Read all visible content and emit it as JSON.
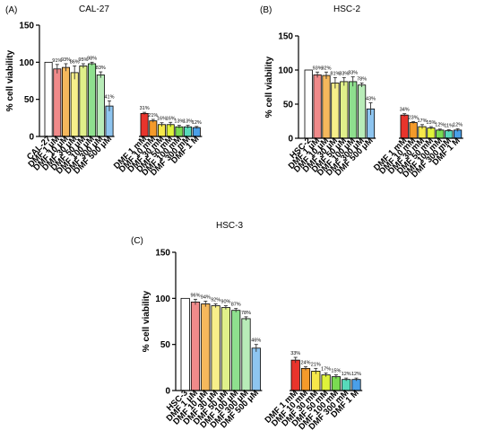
{
  "chart_data": [
    {
      "type": "bar",
      "panel_label": "(A)",
      "title": "CAL-27",
      "ylabel": "% cell viability",
      "ylim": [
        0,
        150
      ],
      "yticks": [
        0,
        50,
        100,
        150
      ],
      "categories": [
        "CAL-27",
        "DMF 1 μM",
        "DMF 10 μM",
        "DMF 30 μM",
        "DMF 50 μM",
        "DMF 100 μM",
        "DMF 300 μM",
        "DMF 500 μM",
        "DMF 1 mM",
        "DMF 10 mM",
        "DMF 30 mM",
        "DMF 50 mM",
        "DMF 100 mM",
        "DMF 300 mM",
        "DMF 1 M"
      ],
      "values": [
        100,
        91,
        93,
        86,
        95,
        98,
        83,
        41,
        31,
        21,
        16,
        16,
        13,
        13,
        12
      ],
      "errors": [
        0,
        6,
        5,
        9,
        3,
        2,
        4,
        7,
        1.5,
        2,
        2.5,
        3,
        2,
        2,
        1.5
      ],
      "data_labels": [
        "",
        "91%",
        "93%",
        "86%",
        "95%",
        "98%",
        "83%",
        "41%",
        "31%",
        "21%",
        "16%",
        "16%",
        "13%",
        "13%",
        "12%"
      ],
      "colors": [
        "#ffffff",
        "#f08a8a",
        "#f5b85c",
        "#f7ef8a",
        "#e0f08a",
        "#8ee08e",
        "#b8ecb8",
        "#8ec5f0",
        "#e8342c",
        "#f49a2a",
        "#f6e84a",
        "#dff23a",
        "#7adb52",
        "#57d9ba",
        "#4a9fe8"
      ],
      "grid": false,
      "legend": "none"
    },
    {
      "type": "bar",
      "panel_label": "(B)",
      "title": "HSC-2",
      "ylabel": "% cell viability",
      "ylim": [
        0,
        150
      ],
      "yticks": [
        0,
        50,
        100,
        150
      ],
      "categories": [
        "HSC-2",
        "DMF 1 μM",
        "DMF 10 μM",
        "DMF 30 μM",
        "DMF 50 μM",
        "DMF 100 μM",
        "DMF 300 μM",
        "DMF 500 μM",
        "DMF 1 mM",
        "DMF 10 mM",
        "DMF 30 mM",
        "DMF 50 mM",
        "DMF 100 mM",
        "DMF 300 mM",
        "DMF 1 M"
      ],
      "values": [
        100,
        93,
        92,
        81,
        83,
        83,
        78,
        43,
        34,
        23,
        17,
        15,
        12,
        11,
        12
      ],
      "errors": [
        0,
        4,
        5,
        8,
        6,
        7,
        3,
        9,
        2,
        1.5,
        3,
        2,
        1.5,
        1.5,
        2
      ],
      "data_labels": [
        "",
        "93%",
        "92%",
        "81%",
        "83%",
        "83%",
        "78%",
        "43%",
        "34%",
        "23%",
        "17%",
        "15%",
        "12%",
        "11%",
        "12%"
      ],
      "colors": [
        "#ffffff",
        "#f08a8a",
        "#f5b85c",
        "#f7ef8a",
        "#e0f08a",
        "#8ee08e",
        "#b8ecb8",
        "#8ec5f0",
        "#e8342c",
        "#f49a2a",
        "#f6e84a",
        "#dff23a",
        "#7adb52",
        "#57d9ba",
        "#4a9fe8"
      ],
      "grid": false,
      "legend": "none"
    },
    {
      "type": "bar",
      "panel_label": "(C)",
      "title": "HSC-3",
      "ylabel": "% cell viability",
      "ylim": [
        0,
        150
      ],
      "yticks": [
        0,
        50,
        100,
        150
      ],
      "categories": [
        "HSC-3",
        "DMF 1 μM",
        "DMF 10 μM",
        "DMF 30 μM",
        "DMF 50 μM",
        "DMF 100 μM",
        "DMF 300 μM",
        "DMF 500 μM",
        "DMF 1 mM",
        "DMF 10 mM",
        "DMF 30 mM",
        "DMF 50 mM",
        "DMF 100 mM",
        "DMF 300 mM",
        "DMF 1 M"
      ],
      "values": [
        100,
        96,
        94,
        92,
        90,
        87,
        78,
        46,
        33,
        24,
        21,
        17,
        15,
        12,
        12
      ],
      "errors": [
        0,
        3,
        3,
        2,
        2,
        2,
        2,
        4,
        3,
        2,
        3,
        2,
        2,
        1.5,
        1.5
      ],
      "data_labels": [
        "",
        "96%",
        "94%",
        "92%",
        "90%",
        "87%",
        "78%",
        "46%",
        "33%",
        "24%",
        "21%",
        "17%",
        "15%",
        "12%",
        "12%"
      ],
      "colors": [
        "#ffffff",
        "#f08a8a",
        "#f5b85c",
        "#f7ef8a",
        "#e0f08a",
        "#8ee08e",
        "#b8ecb8",
        "#8ec5f0",
        "#e8342c",
        "#f49a2a",
        "#f6e84a",
        "#dff23a",
        "#7adb52",
        "#57d9ba",
        "#4a9fe8"
      ],
      "grid": false,
      "legend": "none"
    }
  ]
}
